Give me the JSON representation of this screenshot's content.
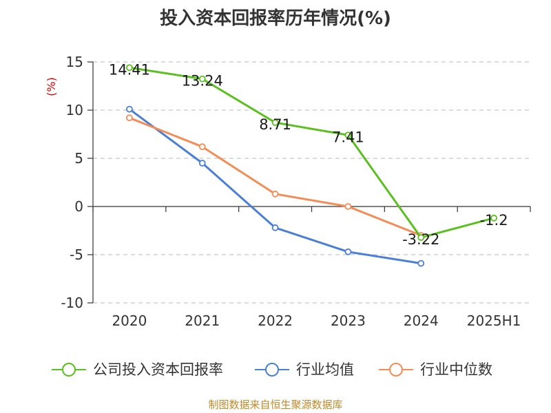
{
  "title": "投入资本回报率历年情况(%)",
  "source": "制图数据来自恒生聚源数据库",
  "chart_data": {
    "type": "line",
    "title": "投入资本回报率历年情况(%)",
    "ylabel": "(%)",
    "xlabel": "",
    "categories": [
      "2020",
      "2021",
      "2022",
      "2023",
      "2024",
      "2025H1"
    ],
    "ylim": [
      -10,
      15
    ],
    "yticks": [
      15,
      10,
      5,
      0,
      -5,
      -10
    ],
    "ytick_labels": [
      "15",
      "10",
      "5",
      "0",
      "-5",
      "-10"
    ],
    "grid": true,
    "legend_position": "bottom",
    "series": [
      {
        "name": "公司投入资本回报率",
        "color": "#5ac01e",
        "values": [
          14.41,
          13.24,
          8.71,
          7.41,
          -3.22,
          -1.2
        ],
        "labels": [
          "14.41",
          "13.24",
          "8.71",
          "7.41",
          "-3.22",
          "-1.2"
        ],
        "show_labels": true
      },
      {
        "name": "行业均值",
        "color": "#4a7fd8",
        "values": [
          10.1,
          4.5,
          -2.2,
          -4.7,
          -5.9,
          null
        ],
        "show_labels": false
      },
      {
        "name": "行业中位数",
        "color": "#f58c55",
        "values": [
          9.2,
          6.2,
          1.3,
          0.0,
          -3.0,
          null
        ],
        "show_labels": false
      }
    ]
  }
}
